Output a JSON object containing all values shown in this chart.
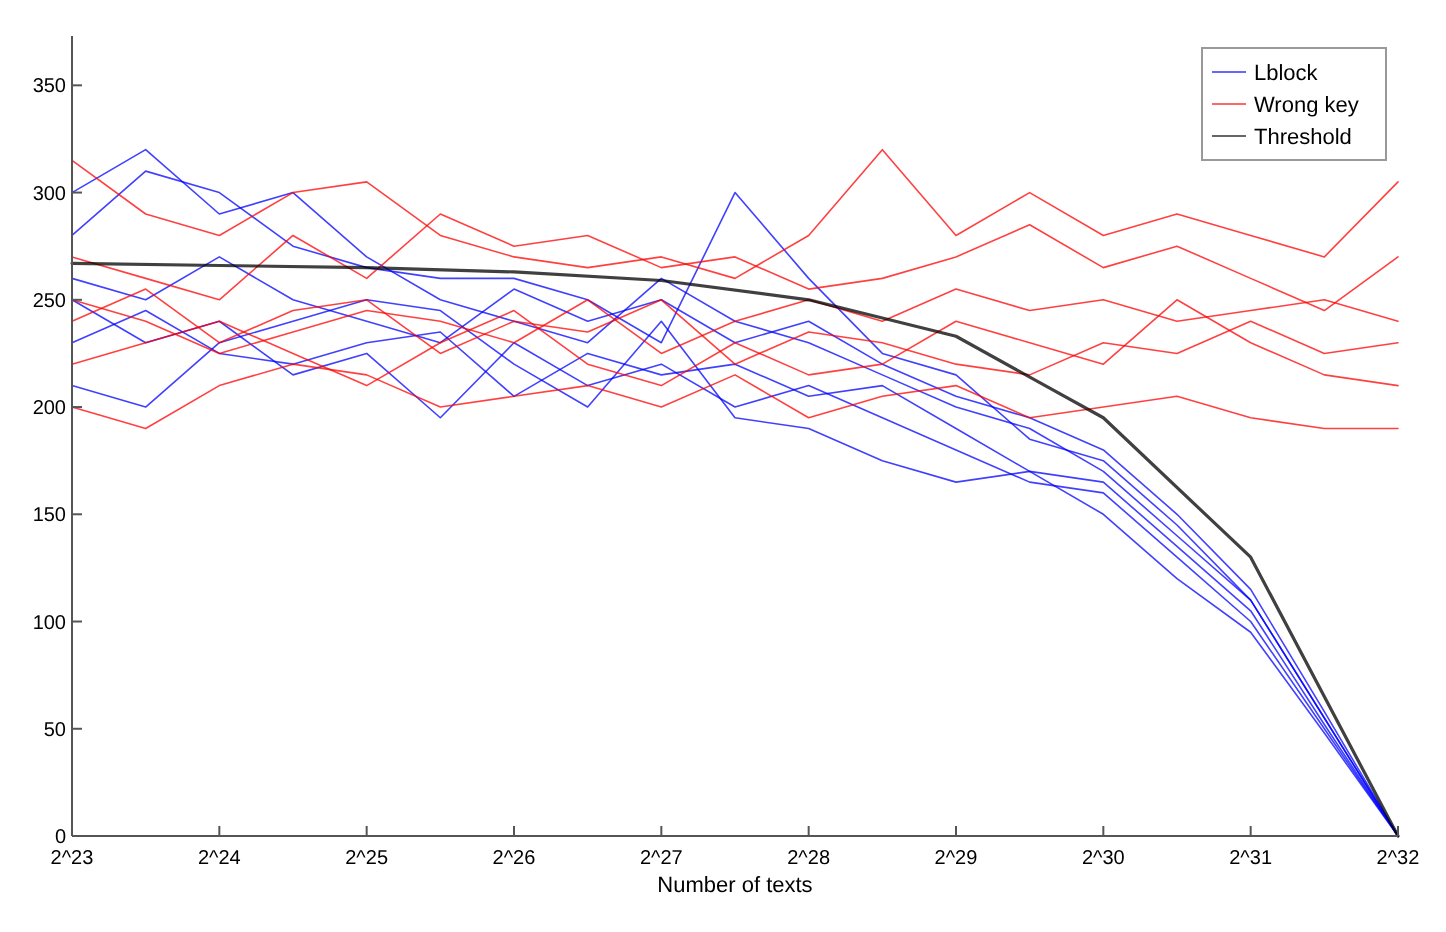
{
  "chart_data": {
    "type": "line",
    "xlabel": "Number of texts",
    "xlim": [
      8388608,
      4294967296
    ],
    "log": "x",
    "ylim": [
      0,
      373
    ],
    "xticks": [
      {
        "value": 8388608,
        "label": "2^23"
      },
      {
        "value": 16777216,
        "label": "2^24"
      },
      {
        "value": 33554432,
        "label": "2^25"
      },
      {
        "value": 67108864,
        "label": "2^26"
      },
      {
        "value": 134217728,
        "label": "2^27"
      },
      {
        "value": 268435456,
        "label": "2^28"
      },
      {
        "value": 536870912,
        "label": "2^29"
      },
      {
        "value": 1073741824,
        "label": "2^30"
      },
      {
        "value": 2147483648,
        "label": "2^31"
      },
      {
        "value": 4294967296,
        "label": "2^32"
      }
    ],
    "yticks": [
      0,
      50,
      100,
      150,
      200,
      250,
      300,
      350
    ],
    "x": [
      8388608,
      11863283,
      16777216,
      23726566,
      33554432,
      47453133,
      67108864,
      94906266,
      134217728,
      189812531,
      268435456,
      379625062,
      536870912,
      759250125,
      1073741824,
      1518500250,
      2147483648,
      3037000500,
      4294967296
    ],
    "legend": "top right",
    "grid": false,
    "series": [
      {
        "name": "Lblock",
        "color": "#0000ff",
        "values": [
          300,
          320,
          290,
          300,
          270,
          250,
          240,
          230,
          260,
          240,
          230,
          215,
          200,
          190,
          170,
          140,
          110,
          55,
          0
        ]
      },
      {
        "color": "#0000ff",
        "values": [
          250,
          230,
          240,
          215,
          225,
          195,
          230,
          210,
          220,
          200,
          210,
          195,
          180,
          165,
          160,
          130,
          100,
          50,
          0
        ]
      },
      {
        "color": "#0000ff",
        "values": [
          210,
          200,
          230,
          240,
          250,
          245,
          220,
          200,
          240,
          195,
          190,
          175,
          165,
          170,
          150,
          120,
          95,
          48,
          0
        ]
      },
      {
        "color": "#0000ff",
        "values": [
          260,
          250,
          270,
          250,
          240,
          230,
          255,
          240,
          250,
          230,
          240,
          220,
          205,
          195,
          180,
          150,
          115,
          58,
          0
        ]
      },
      {
        "color": "#0000ff",
        "values": [
          230,
          245,
          225,
          220,
          230,
          235,
          205,
          225,
          215,
          220,
          205,
          210,
          190,
          170,
          165,
          135,
          105,
          52,
          0
        ]
      },
      {
        "color": "#0000ff",
        "values": [
          280,
          310,
          300,
          275,
          265,
          260,
          260,
          250,
          230,
          300,
          260,
          225,
          215,
          185,
          175,
          145,
          110,
          55,
          0
        ]
      },
      {
        "name": "Wrong key",
        "color": "#ff0000",
        "values": [
          315,
          290,
          280,
          300,
          305,
          280,
          270,
          265,
          270,
          260,
          280,
          320,
          280,
          300,
          280,
          290,
          280,
          270,
          305
        ]
      },
      {
        "color": "#ff0000",
        "values": [
          250,
          240,
          225,
          235,
          245,
          240,
          230,
          250,
          225,
          240,
          250,
          240,
          255,
          245,
          250,
          240,
          245,
          250,
          240
        ]
      },
      {
        "color": "#ff0000",
        "values": [
          220,
          230,
          240,
          225,
          210,
          230,
          245,
          220,
          210,
          230,
          215,
          220,
          240,
          230,
          220,
          250,
          230,
          215,
          210
        ]
      },
      {
        "color": "#ff0000",
        "values": [
          200,
          190,
          210,
          220,
          215,
          200,
          205,
          210,
          200,
          215,
          195,
          205,
          210,
          195,
          200,
          205,
          195,
          190,
          190
        ]
      },
      {
        "color": "#ff0000",
        "values": [
          270,
          260,
          250,
          280,
          260,
          290,
          275,
          280,
          265,
          270,
          255,
          260,
          270,
          285,
          265,
          275,
          260,
          245,
          270
        ]
      },
      {
        "color": "#ff0000",
        "values": [
          240,
          255,
          230,
          245,
          250,
          225,
          240,
          235,
          250,
          220,
          235,
          230,
          220,
          215,
          230,
          225,
          240,
          225,
          230
        ]
      },
      {
        "name": "Threshold",
        "color": "#000000",
        "x": [
          8388608,
          16777216,
          33554432,
          67108864,
          134217728,
          268435456,
          536870912,
          1073741824,
          2147483648,
          4294967296
        ],
        "values": [
          267,
          266,
          265,
          263,
          259,
          250,
          233,
          195,
          130,
          0
        ]
      }
    ]
  }
}
